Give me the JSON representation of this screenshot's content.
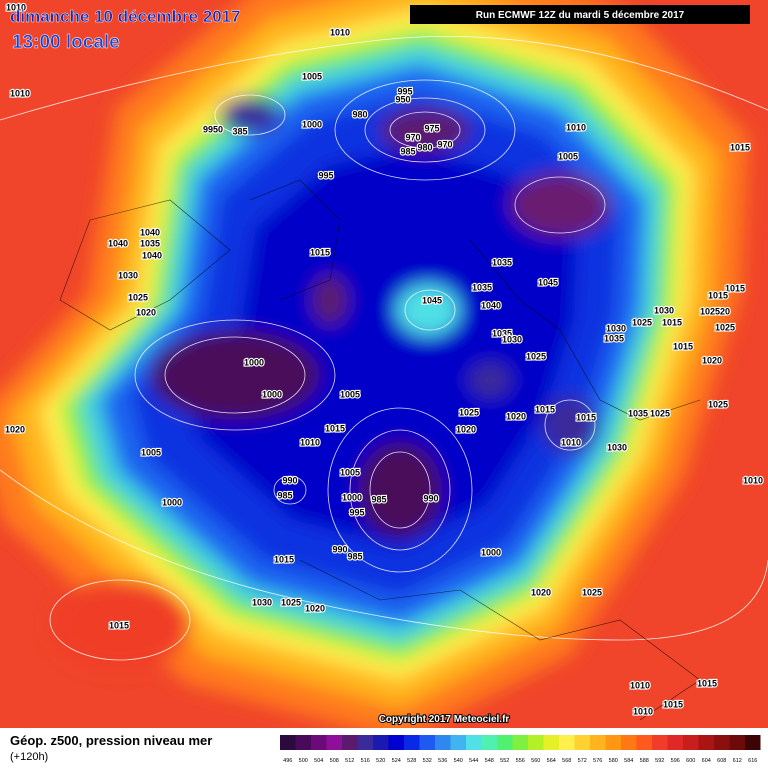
{
  "header": {
    "date": "dimanche 10 décembre 2017",
    "time": "13:00 locale",
    "run": "Run ECMWF 12Z du mardi 5 décembre 2017"
  },
  "map": {
    "isobar_labels": [
      "1010",
      "1010",
      "1005",
      "995",
      "950",
      "980",
      "975",
      "970",
      "980",
      "970",
      "985",
      "9950",
      "385",
      "1000",
      "1010",
      "1005",
      "1015",
      "995",
      "1010",
      "1015",
      "1035",
      "1035",
      "1045",
      "1045",
      "1040",
      "1040",
      "1035",
      "1040",
      "1040",
      "1030",
      "1025",
      "1020",
      "1030",
      "1015",
      "1015",
      "1015",
      "1025",
      "1030",
      "1035",
      "102520",
      "1025",
      "1035",
      "1030",
      "1025",
      "1000",
      "1000",
      "1005",
      "1015",
      "1020",
      "1015",
      "1015",
      "1025",
      "1020",
      "1020",
      "1035",
      "1025",
      "1025",
      "1020",
      "1015",
      "1010",
      "1010",
      "1030",
      "1005",
      "1005",
      "990",
      "985",
      "1000",
      "985",
      "990",
      "995",
      "1000",
      "1010",
      "990",
      "985",
      "1000",
      "1015",
      "1020",
      "1025",
      "1030",
      "1025",
      "1020",
      "1015",
      "1010",
      "1015",
      "1015",
      "1010"
    ],
    "copyright": "Copyright 2017 Meteociel.fr"
  },
  "legend": {
    "title": "Géop. z500, pression niveau mer",
    "subtitle": "(+120h)",
    "values": [
      496,
      500,
      504,
      508,
      512,
      516,
      520,
      524,
      528,
      532,
      536,
      540,
      544,
      548,
      552,
      556,
      560,
      564,
      568,
      572,
      576,
      580,
      584,
      588,
      592,
      596,
      600,
      604,
      608,
      612,
      616
    ],
    "colors": [
      "#2b0a3d",
      "#4a0a5a",
      "#6b0b7a",
      "#8e0f99",
      "#5c1a6e",
      "#3a2a9a",
      "#1a1ab0",
      "#0000d0",
      "#0a28e6",
      "#1e5af0",
      "#2e88f0",
      "#40b4f0",
      "#50e0e6",
      "#50f0b0",
      "#50f070",
      "#7ef040",
      "#b4f028",
      "#e6f028",
      "#fff050",
      "#ffd232",
      "#ffb41e",
      "#ff9614",
      "#ff7814",
      "#ff5a1e",
      "#f03c28",
      "#e02828",
      "#c81e1e",
      "#aa1414",
      "#8c0f0f",
      "#6e0a0a",
      "#3c0505"
    ]
  }
}
